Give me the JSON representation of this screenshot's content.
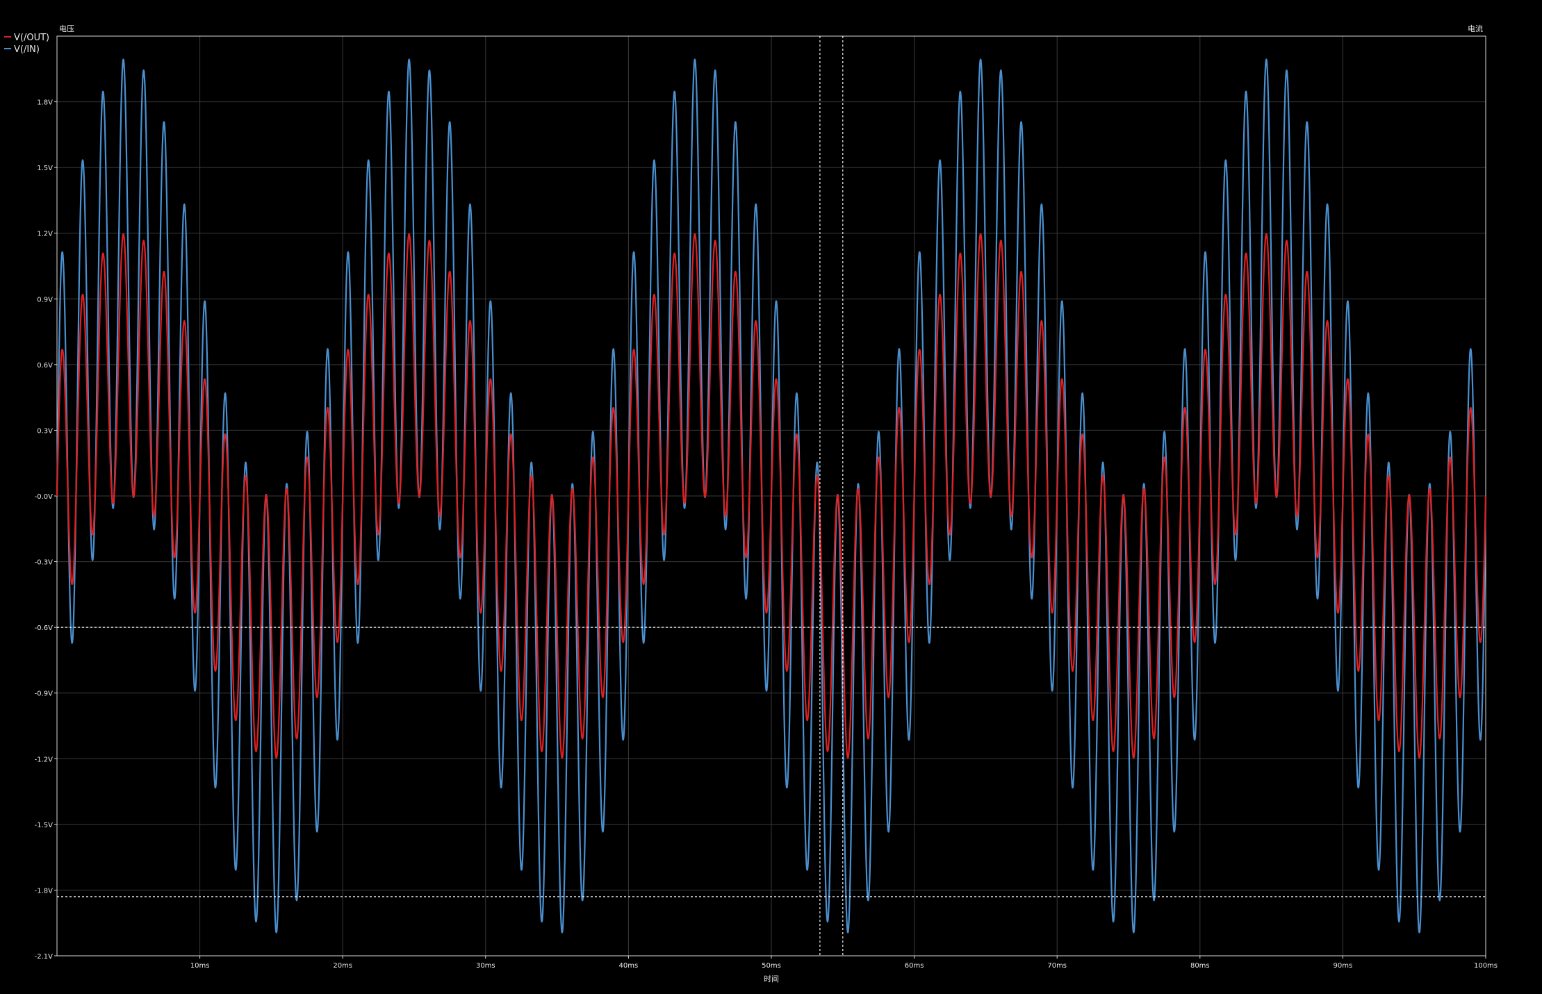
{
  "chart_data": {
    "type": "line",
    "left_axis_title": "电压",
    "right_axis_title": "电流",
    "xlabel": "时间",
    "xlim": [
      0,
      100
    ],
    "ylim": [
      -2.1,
      2.1
    ],
    "x_ticks": [
      {
        "value": 10,
        "label": "10ms"
      },
      {
        "value": 20,
        "label": "20ms"
      },
      {
        "value": 30,
        "label": "30ms"
      },
      {
        "value": 40,
        "label": "40ms"
      },
      {
        "value": 50,
        "label": "50ms"
      },
      {
        "value": 60,
        "label": "60ms"
      },
      {
        "value": 70,
        "label": "70ms"
      },
      {
        "value": 80,
        "label": "80ms"
      },
      {
        "value": 90,
        "label": "90ms"
      },
      {
        "value": 100,
        "label": "100ms"
      }
    ],
    "y_ticks": [
      {
        "value": 1.8,
        "label": "1.8V"
      },
      {
        "value": 1.5,
        "label": "1.5V"
      },
      {
        "value": 1.2,
        "label": "1.2V"
      },
      {
        "value": 0.9,
        "label": "0.9V"
      },
      {
        "value": 0.6,
        "label": "0.6V"
      },
      {
        "value": 0.3,
        "label": "0.3V"
      },
      {
        "value": 0.0,
        "label": "-0.0V"
      },
      {
        "value": -0.3,
        "label": "-0.3V"
      },
      {
        "value": -0.6,
        "label": "-0.6V"
      },
      {
        "value": -0.9,
        "label": "-0.9V"
      },
      {
        "value": -1.2,
        "label": "-1.2V"
      },
      {
        "value": -1.5,
        "label": "-1.5V"
      },
      {
        "value": -1.8,
        "label": "-1.8V"
      },
      {
        "value": -2.1,
        "label": "-2.1V"
      }
    ],
    "grid": true,
    "legend_position": "top-left",
    "series": [
      {
        "name": "V(/OUT)",
        "color": "#e02020",
        "signal": {
          "components": [
            {
              "amplitude": 0.6,
              "frequency_hz": 50
            },
            {
              "amplitude": 0.6,
              "frequency_hz": 700
            }
          ]
        }
      },
      {
        "name": "V(/IN)",
        "color": "#4a90d0",
        "signal": {
          "components": [
            {
              "amplitude": 1.0,
              "frequency_hz": 50
            },
            {
              "amplitude": 1.0,
              "frequency_hz": 700
            }
          ]
        }
      }
    ],
    "cursors": {
      "vertical_ms": [
        53.4,
        55.0
      ],
      "horizontal_v": [
        -0.6,
        -1.83
      ]
    }
  }
}
